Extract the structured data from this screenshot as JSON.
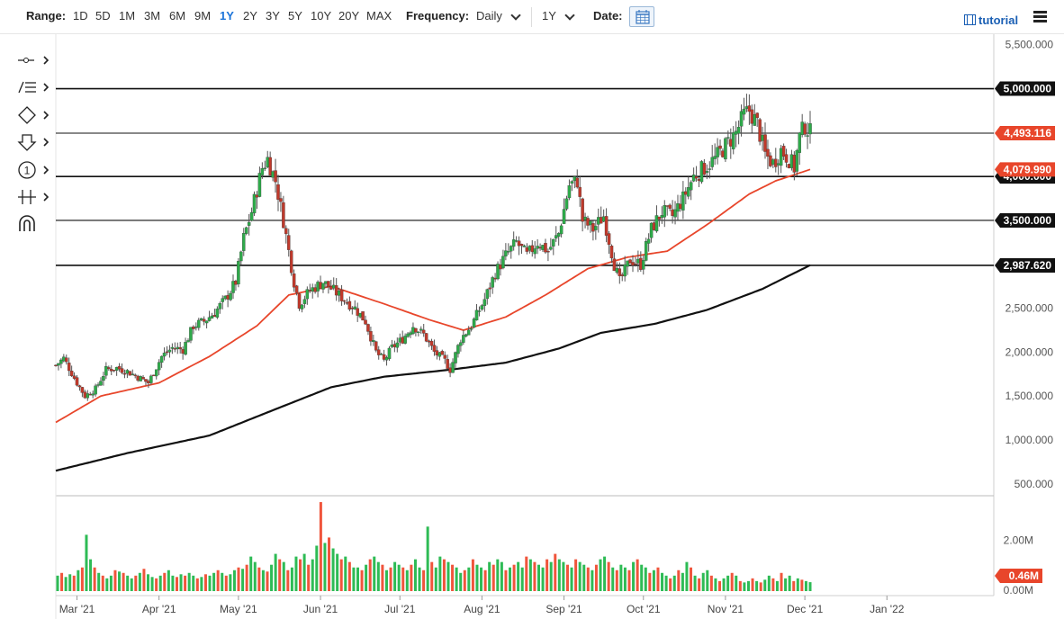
{
  "toolbar": {
    "range_label": "Range:",
    "ranges": [
      "1D",
      "5D",
      "1M",
      "3M",
      "6M",
      "9M",
      "1Y",
      "2Y",
      "3Y",
      "5Y",
      "10Y",
      "20Y",
      "MAX"
    ],
    "active_range": "1Y",
    "frequency_label": "Frequency:",
    "frequency_value": "Daily",
    "period_value": "1Y",
    "date_label": "Date:",
    "tutorial_label": "tutorial"
  },
  "tools": [
    "crosshair-icon",
    "trendline-icon",
    "shapes-icon",
    "arrow-down-icon",
    "annotation-icon",
    "measure-icon",
    "magnet-icon"
  ],
  "colors": {
    "up": "#2eaa4a",
    "down": "#c0392b",
    "ma_fast": "#e8462b",
    "ma_slow": "#111111",
    "vol_up": "#2ebb55",
    "vol_down": "#f0553c"
  },
  "chart_data": {
    "type": "candlestick",
    "price_axis": {
      "ylim": [
        375,
        5620
      ],
      "ticks": [
        500,
        1000,
        1500,
        2000,
        2500,
        3000,
        3500,
        4000,
        4500,
        5000,
        5500
      ],
      "tick_labels": [
        "500.000",
        "1,000.000",
        "1,500.000",
        "2,000.000",
        "2,500.000",
        "3,000.000",
        "3,500.000",
        "4,000.000",
        "4,500.000",
        "5,000.000",
        "5,500.000"
      ]
    },
    "x_axis": {
      "labels": [
        "Mar '21",
        "Apr '21",
        "May '21",
        "Jun '21",
        "Jul '21",
        "Aug '21",
        "Sep '21",
        "Oct '21",
        "Nov '21",
        "Dec '21",
        "Jan '22"
      ]
    },
    "horizontal_lines": [
      {
        "value": 5000,
        "label": "5,000.000"
      },
      {
        "value": 4493.116,
        "label": "4,493.116"
      },
      {
        "value": 4000,
        "label": "4,000.000"
      },
      {
        "value": 3500,
        "label": "3,500.000"
      },
      {
        "value": 2987.62,
        "label": "2,987.620"
      }
    ],
    "price_badges": [
      {
        "value": 4493.116,
        "label": "4,493.116",
        "color": "#e8462b"
      },
      {
        "value": 4079.99,
        "label": "4,079.990",
        "color": "#e8462b"
      }
    ],
    "anchor_closes": [
      [
        "Feb 21",
        1850
      ],
      [
        "Feb 24",
        1930
      ],
      [
        "Mar 1",
        1650
      ],
      [
        "Mar 4",
        1500
      ],
      [
        "Mar 8",
        1580
      ],
      [
        "Mar 12",
        1800
      ],
      [
        "Mar 16",
        1820
      ],
      [
        "Mar 20",
        1780
      ],
      [
        "Mar 25",
        1700
      ],
      [
        "Mar 28",
        1650
      ],
      [
        "Apr 2",
        1950
      ],
      [
        "Apr 6",
        2050
      ],
      [
        "Apr 10",
        2030
      ],
      [
        "Apr 14",
        2300
      ],
      [
        "Apr 18",
        2350
      ],
      [
        "Apr 22",
        2450
      ],
      [
        "Apr 26",
        2600
      ],
      [
        "Apr 30",
        2800
      ],
      [
        "May 3",
        3300
      ],
      [
        "May 6",
        3600
      ],
      [
        "May 10",
        4100
      ],
      [
        "May 12",
        4200
      ],
      [
        "May 15",
        3950
      ],
      [
        "May 18",
        3500
      ],
      [
        "May 22",
        2800
      ],
      [
        "May 24",
        2550
      ],
      [
        "May 28",
        2700
      ],
      [
        "Jun 2",
        2800
      ],
      [
        "Jun 6",
        2700
      ],
      [
        "Jun 10",
        2600
      ],
      [
        "Jun 14",
        2500
      ],
      [
        "Jun 18",
        2350
      ],
      [
        "Jun 22",
        2000
      ],
      [
        "Jun 25",
        1900
      ],
      [
        "Jun 28",
        2050
      ],
      [
        "Jul 2",
        2150
      ],
      [
        "Jul 6",
        2300
      ],
      [
        "Jul 10",
        2200
      ],
      [
        "Jul 14",
        2000
      ],
      [
        "Jul 18",
        1900
      ],
      [
        "Jul 20",
        1800
      ],
      [
        "Jul 24",
        2150
      ],
      [
        "Jul 28",
        2300
      ],
      [
        "Aug 2",
        2600
      ],
      [
        "Aug 6",
        2900
      ],
      [
        "Aug 10",
        3100
      ],
      [
        "Aug 14",
        3250
      ],
      [
        "Aug 18",
        3100
      ],
      [
        "Aug 22",
        3250
      ],
      [
        "Aug 26",
        3150
      ],
      [
        "Aug 30",
        3350
      ],
      [
        "Sep 3",
        3900
      ],
      [
        "Sep 6",
        3950
      ],
      [
        "Sep 8",
        3500
      ],
      [
        "Sep 12",
        3400
      ],
      [
        "Sep 16",
        3550
      ],
      [
        "Sep 20",
        3000
      ],
      [
        "Sep 22",
        2800
      ],
      [
        "Sep 26",
        3050
      ],
      [
        "Sep 30",
        3000
      ],
      [
        "Oct 4",
        3400
      ],
      [
        "Oct 8",
        3600
      ],
      [
        "Oct 12",
        3550
      ],
      [
        "Oct 16",
        3750
      ],
      [
        "Oct 20",
        4000
      ],
      [
        "Oct 24",
        4100
      ],
      [
        "Oct 28",
        4200
      ],
      [
        "Nov 1",
        4350
      ],
      [
        "Nov 5",
        4500
      ],
      [
        "Nov 8",
        4700
      ],
      [
        "Nov 10",
        4750
      ],
      [
        "Nov 13",
        4600
      ],
      [
        "Nov 16",
        4250
      ],
      [
        "Nov 19",
        4150
      ],
      [
        "Nov 22",
        4300
      ],
      [
        "Nov 25",
        4200
      ],
      [
        "Nov 27",
        4100
      ],
      [
        "Nov 29",
        4450
      ],
      [
        "Dec 1",
        4580
      ],
      [
        "Dec 3",
        4493
      ]
    ],
    "ma_fast_anchors": [
      [
        "Feb 21",
        1200
      ],
      [
        "Mar 10",
        1500
      ],
      [
        "Apr 1",
        1650
      ],
      [
        "Apr 20",
        1950
      ],
      [
        "May 8",
        2300
      ],
      [
        "May 20",
        2650
      ],
      [
        "Jun 5",
        2750
      ],
      [
        "Jun 25",
        2550
      ],
      [
        "Jul 12",
        2370
      ],
      [
        "Jul 25",
        2250
      ],
      [
        "Aug 10",
        2400
      ],
      [
        "Aug 25",
        2650
      ],
      [
        "Sep 10",
        2950
      ],
      [
        "Sep 25",
        3080
      ],
      [
        "Oct 10",
        3150
      ],
      [
        "Oct 25",
        3450
      ],
      [
        "Nov 10",
        3800
      ],
      [
        "Nov 20",
        3950
      ],
      [
        "Dec 3",
        4080
      ]
    ],
    "ma_slow_anchors": [
      [
        "Feb 21",
        650
      ],
      [
        "Mar 20",
        850
      ],
      [
        "Apr 20",
        1050
      ],
      [
        "May 15",
        1350
      ],
      [
        "Jun 5",
        1600
      ],
      [
        "Jun 25",
        1720
      ],
      [
        "Jul 20",
        1800
      ],
      [
        "Aug 10",
        1880
      ],
      [
        "Aug 30",
        2040
      ],
      [
        "Sep 15",
        2220
      ],
      [
        "Oct 5",
        2320
      ],
      [
        "Oct 25",
        2480
      ],
      [
        "Nov 15",
        2720
      ],
      [
        "Dec 3",
        2990
      ]
    ],
    "volume": {
      "axis_ticks": [
        "2.00M",
        "0.00M"
      ],
      "latest_label": "0.46M",
      "values_millions": [
        0.7,
        0.8,
        0.65,
        0.75,
        0.7,
        0.9,
        1.0,
        2.2,
        1.3,
        1.0,
        0.8,
        0.7,
        0.6,
        0.7,
        0.9,
        0.85,
        0.8,
        0.7,
        0.6,
        0.7,
        0.8,
        0.95,
        0.75,
        0.65,
        0.6,
        0.7,
        0.8,
        0.9,
        0.7,
        0.65,
        0.75,
        0.7,
        0.8,
        0.7,
        0.6,
        0.65,
        0.75,
        0.7,
        0.8,
        0.9,
        0.8,
        0.7,
        0.75,
        0.9,
        1.0,
        0.95,
        1.1,
        1.4,
        1.2,
        1.0,
        0.9,
        0.85,
        1.1,
        1.5,
        1.3,
        1.2,
        0.9,
        1.0,
        1.4,
        1.3,
        1.5,
        1.1,
        1.3,
        1.8,
        3.4,
        1.9,
        2.1,
        1.7,
        1.5,
        1.3,
        1.4,
        1.2,
        1.0,
        1.0,
        0.9,
        1.1,
        1.3,
        1.4,
        1.2,
        1.1,
        0.9,
        1.0,
        1.2,
        1.1,
        1.0,
        0.9,
        1.1,
        1.3,
        1.0,
        0.9,
        2.5,
        1.2,
        1.0,
        1.4,
        1.3,
        1.2,
        1.1,
        1.0,
        0.8,
        0.9,
        1.0,
        1.3,
        1.1,
        1.0,
        0.9,
        1.2,
        1.1,
        1.3,
        1.2,
        0.9,
        1.0,
        1.1,
        1.2,
        1.0,
        1.4,
        1.3,
        1.2,
        1.1,
        1.0,
        1.3,
        1.2,
        1.5,
        1.3,
        1.2,
        1.1,
        1.0,
        1.3,
        1.2,
        1.1,
        1.0,
        0.9,
        1.1,
        1.3,
        1.4,
        1.2,
        1.0,
        0.9,
        1.1,
        1.0,
        0.9,
        1.2,
        1.3,
        1.1,
        1.0,
        0.8,
        0.9,
        1.0,
        0.8,
        0.7,
        0.6,
        0.7,
        0.9,
        0.8,
        1.2,
        1.0,
        0.7,
        0.6,
        0.8,
        0.9,
        0.7,
        0.6,
        0.5,
        0.6,
        0.7,
        0.8,
        0.7,
        0.5,
        0.45,
        0.5,
        0.6,
        0.5,
        0.45,
        0.55,
        0.7,
        0.6,
        0.5,
        0.8,
        0.6,
        0.7,
        0.5,
        0.6,
        0.55,
        0.5,
        0.46
      ],
      "ylim_millions": [
        0,
        3.6
      ]
    }
  }
}
